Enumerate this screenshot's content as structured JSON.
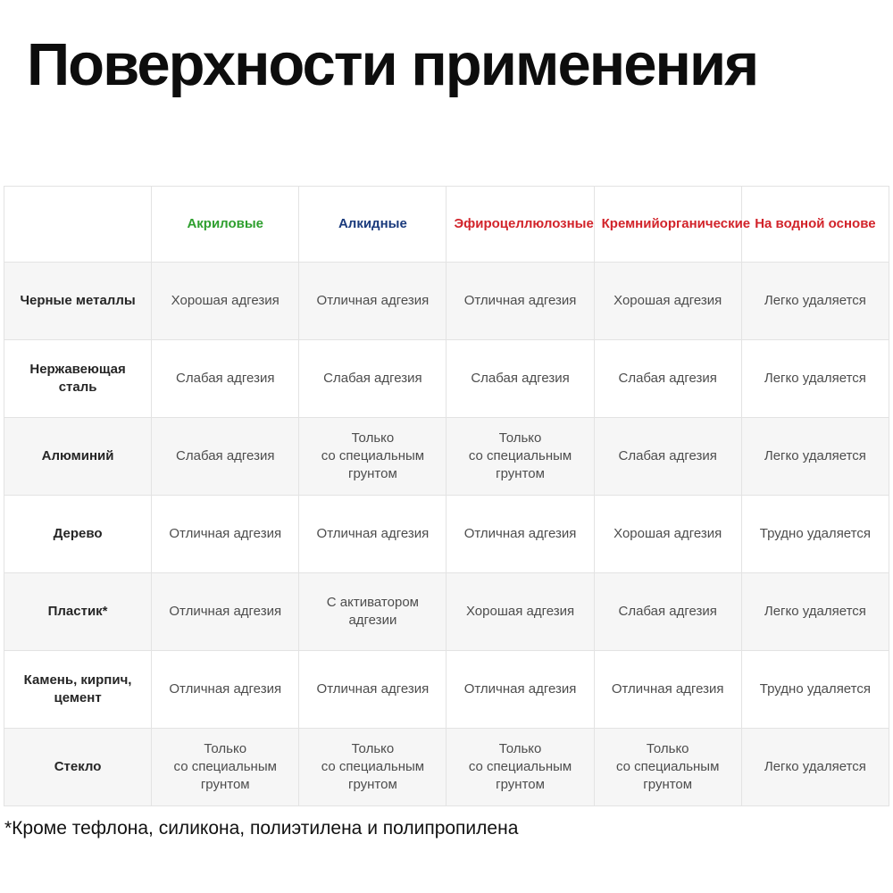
{
  "title": "Поверхности применения",
  "footnote": "*Кроме тефлона, силикона, полиэтилена и полипропилена",
  "colors": {
    "header_green": "#2e9f2e",
    "header_blue": "#1a3a7c",
    "header_red": "#d2232a"
  },
  "chart_data": {
    "type": "table",
    "title": "Поверхности применения",
    "columns": [
      {
        "label": "",
        "color": "#262626"
      },
      {
        "label": "Акриловые",
        "color": "#2e9f2e"
      },
      {
        "label": "Алкидные",
        "color": "#1a3a7c"
      },
      {
        "label": "Эфироцеллюлозные",
        "color": "#d2232a"
      },
      {
        "label": "Кремнийорганические",
        "color": "#d2232a"
      },
      {
        "label": "На водной основе",
        "color": "#d2232a"
      }
    ],
    "rows": [
      {
        "surface": "Черные металлы",
        "cells": [
          "Хорошая адгезия",
          "Отличная адгезия",
          "Отличная адгезия",
          "Хорошая адгезия",
          "Легко удаляется"
        ]
      },
      {
        "surface": "Нержавеющая сталь",
        "cells": [
          "Слабая адгезия",
          "Слабая адгезия",
          "Слабая адгезия",
          "Слабая адгезия",
          "Легко удаляется"
        ]
      },
      {
        "surface": "Алюминий",
        "cells": [
          "Слабая адгезия",
          "Только\nсо специальным\nгрунтом",
          "Только\nсо специальным\nгрунтом",
          "Слабая адгезия",
          "Легко удаляется"
        ]
      },
      {
        "surface": "Дерево",
        "cells": [
          "Отличная адгезия",
          "Отличная адгезия",
          "Отличная адгезия",
          "Хорошая адгезия",
          "Трудно удаляется"
        ]
      },
      {
        "surface": "Пластик*",
        "cells": [
          "Отличная адгезия",
          "С активатором адгезии",
          "Хорошая адгезия",
          "Слабая адгезия",
          "Легко удаляется"
        ]
      },
      {
        "surface": "Камень, кирпич,\nцемент",
        "cells": [
          "Отличная адгезия",
          "Отличная адгезия",
          "Отличная адгезия",
          "Отличная адгезия",
          "Трудно удаляется"
        ]
      },
      {
        "surface": "Стекло",
        "cells": [
          "Только\nсо специальным\nгрунтом",
          "Только\nсо специальным\nгрунтом",
          "Только\nсо специальным\nгрунтом",
          "Только\nсо специальным\nгрунтом",
          "Легко удаляется"
        ]
      }
    ]
  }
}
